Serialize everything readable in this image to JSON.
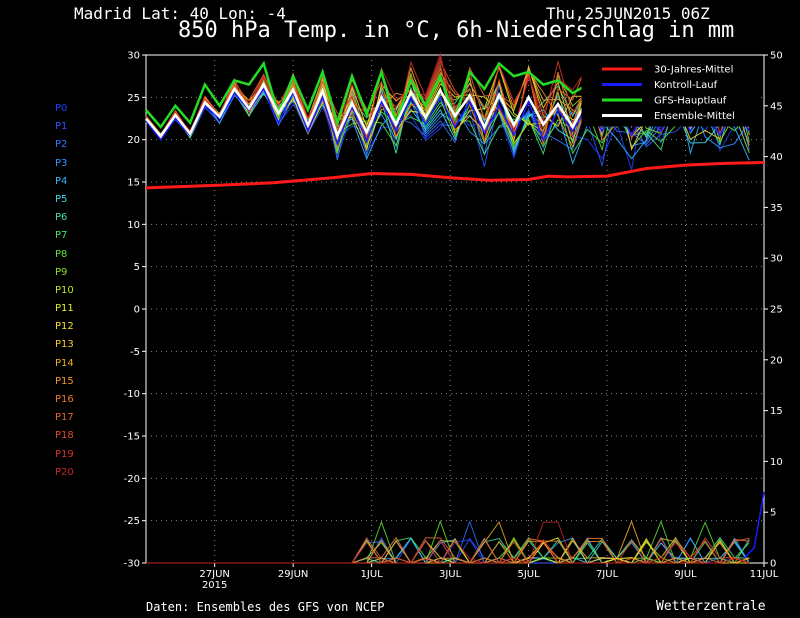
{
  "header": {
    "location": "Madrid   Lat: 40 Lon: -4",
    "run": "Thu,25JUN2015 06Z",
    "title": "850 hPa Temp. in °C, 6h-Niederschlag in mm"
  },
  "footer": {
    "source": "Daten: Ensembles des GFS von NCEP",
    "brand": "Wetterzentrale"
  },
  "members": [
    {
      "label": "P0",
      "color": "#1f3bff"
    },
    {
      "label": "P1",
      "color": "#2a55ff"
    },
    {
      "label": "P2",
      "color": "#2f74ff"
    },
    {
      "label": "P3",
      "color": "#2f96ff"
    },
    {
      "label": "P4",
      "color": "#32b6ff"
    },
    {
      "label": "P5",
      "color": "#3ed6e8"
    },
    {
      "label": "P6",
      "color": "#3fe0a6"
    },
    {
      "label": "P7",
      "color": "#45e06a"
    },
    {
      "label": "P8",
      "color": "#5ee03a"
    },
    {
      "label": "P9",
      "color": "#8ee02c"
    },
    {
      "label": "P10",
      "color": "#b8e82a"
    },
    {
      "label": "P11",
      "color": "#e0ee2a"
    },
    {
      "label": "P12",
      "color": "#f2e02a"
    },
    {
      "label": "P13",
      "color": "#f4c82a"
    },
    {
      "label": "P14",
      "color": "#f4ae2a"
    },
    {
      "label": "P15",
      "color": "#f2952a"
    },
    {
      "label": "P16",
      "color": "#ee7a2a"
    },
    {
      "label": "P17",
      "color": "#ea622a"
    },
    {
      "label": "P18",
      "color": "#e24a2a"
    },
    {
      "label": "P19",
      "color": "#d6342a"
    },
    {
      "label": "P20",
      "color": "#c4222a"
    }
  ],
  "chart_data": {
    "type": "line",
    "y_left": {
      "min": -30,
      "max": 30,
      "step": 5,
      "ticks": [
        "30",
        "25",
        "20",
        "15",
        "10",
        "5",
        "0",
        "-5",
        "-10",
        "-15",
        "-20",
        "-25",
        "-30"
      ]
    },
    "y_right": {
      "min": 0,
      "max": 50,
      "step": 5,
      "ticks": [
        "50",
        "45",
        "40",
        "35",
        "30",
        "25",
        "20",
        "15",
        "10",
        "5",
        "0"
      ]
    },
    "x_range_days": [
      25.25,
      41.0
    ],
    "x_ticks": [
      {
        "day": 27,
        "label": "27JUN",
        "sub": "2015"
      },
      {
        "day": 29,
        "label": "29JUN",
        "sub": ""
      },
      {
        "day": 31,
        "label": "1JUL",
        "sub": ""
      },
      {
        "day": 33,
        "label": "3JUL",
        "sub": ""
      },
      {
        "day": 35,
        "label": "5JUL",
        "sub": ""
      },
      {
        "day": 37,
        "label": "7JUL",
        "sub": ""
      },
      {
        "day": 39,
        "label": "9JUL",
        "sub": ""
      },
      {
        "day": 41,
        "label": "11JUL",
        "sub": ""
      }
    ],
    "grid": true,
    "legend_position": "top-right",
    "legend": [
      {
        "name": "30-Jahres-Mittel",
        "color": "#ff1a1a"
      },
      {
        "name": "Kontroll-Lauf",
        "color": "#1a1aff"
      },
      {
        "name": "GFS-Hauptlauf",
        "color": "#22dd22"
      },
      {
        "name": "Ensemble-Mittel",
        "color": "#ffffff"
      }
    ],
    "climate_mean": [
      [
        25.25,
        14.3
      ],
      [
        27,
        14.6
      ],
      [
        28.5,
        14.9
      ],
      [
        30,
        15.5
      ],
      [
        31,
        16.0
      ],
      [
        32,
        15.9
      ],
      [
        33,
        15.5
      ],
      [
        34,
        15.2
      ],
      [
        35,
        15.3
      ],
      [
        35.5,
        15.7
      ],
      [
        36,
        15.6
      ],
      [
        37,
        15.7
      ],
      [
        38,
        16.6
      ],
      [
        39,
        17.0
      ],
      [
        40,
        17.2
      ],
      [
        41,
        17.3
      ]
    ],
    "ensemble_mean": [
      22.5,
      20.4,
      22.9,
      20.7,
      24.4,
      22.7,
      26.0,
      23.7,
      26.5,
      23.1,
      25.9,
      21.7,
      25.8,
      20.5,
      24.3,
      20.9,
      25.0,
      21.8,
      25.6,
      22.6,
      25.8,
      22.8,
      25.2,
      21.5,
      25.3,
      21.7,
      25.0,
      21.8,
      24.2,
      21.5,
      24.8,
      22.0,
      24.5,
      21.7,
      24.6,
      22.6,
      25.0,
      22.7,
      24.1,
      22.4,
      24.7,
      22.5
    ],
    "gfs_main": [
      23.5,
      21.5,
      24.0,
      22.0,
      26.5,
      24.0,
      27.0,
      26.5,
      29.0,
      23.0,
      27.5,
      23.5,
      28.0,
      22.0,
      27.5,
      23.0,
      28.0,
      22.0,
      27.0,
      24.0,
      27.5,
      22.5,
      28.0,
      26.0,
      29.0,
      27.5,
      28.0,
      26.5,
      27.0,
      25.5,
      26.5,
      26.0,
      28.0,
      24.0,
      25.5,
      23.0,
      26.5,
      24.5,
      25.0,
      23.0,
      25.0,
      23.0
    ],
    "control_run": [
      22.2,
      20.0,
      22.5,
      20.5,
      24.0,
      22.5,
      25.5,
      23.5,
      26.0,
      22.0,
      25.5,
      21.0,
      25.0,
      19.5,
      24.0,
      19.8,
      24.5,
      21.0,
      25.0,
      21.8,
      25.0,
      21.5,
      24.5,
      20.8,
      24.0,
      20.5,
      24.5,
      20.0,
      23.5,
      21.0,
      24.0,
      21.0,
      23.8,
      20.5,
      23.5,
      21.0,
      24.5,
      21.0,
      23.5,
      20.5,
      23.8,
      21.0
    ],
    "member_spread": [
      0.3,
      0.3,
      0.4,
      0.4,
      0.6,
      0.6,
      0.8,
      0.9,
      1.0,
      1.2,
      1.4,
      1.6,
      1.8,
      2.2,
      2.5,
      2.6,
      2.8,
      3.0,
      3.0,
      3.0,
      3.1,
      3.1,
      3.2,
      3.3,
      3.4,
      3.4,
      3.5,
      3.5,
      3.6,
      3.6,
      3.6,
      3.7,
      3.7,
      3.7,
      3.8,
      3.8,
      3.8,
      3.9,
      3.9,
      3.9,
      4.0,
      4.0
    ],
    "precip_control_end": [
      [
        40.5,
        0.5
      ],
      [
        40.75,
        1.5
      ],
      [
        41.0,
        7.0
      ]
    ]
  }
}
